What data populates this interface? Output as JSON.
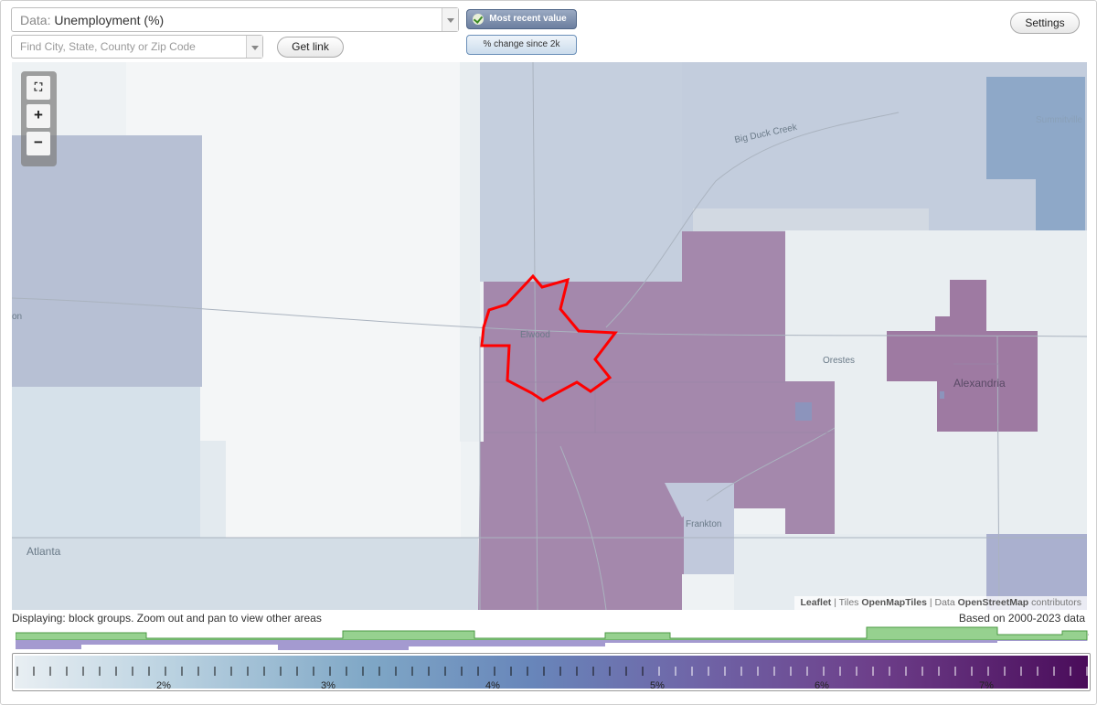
{
  "data_select": {
    "prefix": "Data:",
    "value": "Unemployment (%)"
  },
  "search": {
    "placeholder": "Find City, State, County or Zip Code"
  },
  "buttons": {
    "get_link": "Get link",
    "settings": "Settings"
  },
  "modes": {
    "recent": "Most recent value",
    "change": "% change since 2k",
    "selected": "recent"
  },
  "zoom": {
    "fullscreen_icon": "fullscreen-icon",
    "zoom_in": "+",
    "zoom_out": "−"
  },
  "map": {
    "labels": {
      "big_duck_creek": "Big Duck Creek",
      "summitville": "Summitville",
      "elwood": "Elwood",
      "orestes": "Orestes",
      "alexandria": "Alexandria",
      "frankton": "Frankton",
      "atlanta": "Atlanta",
      "left_edge": "on"
    },
    "attribution": {
      "leaflet": "Leaflet",
      "tiles": "Tiles",
      "tiles_src": "OpenMapTiles",
      "data": "Data",
      "data_src": "OpenStreetMap",
      "contributors": "contributors"
    },
    "highlight_color": "#ff0000"
  },
  "display_note": "Displaying: block groups. Zoom out and pan to view other areas",
  "data_range": "Based on 2000-2023 data",
  "legend": {
    "tick_labels": [
      "2%",
      "3%",
      "4%",
      "5%",
      "6%",
      "7%"
    ],
    "histogram_help": "?",
    "colors": {
      "low": "#e9eff3",
      "mid": "#6886ba",
      "high": "#4a0c5a",
      "histogram_green": "#8fd08a",
      "histogram_purple": "#a49ad0"
    }
  }
}
